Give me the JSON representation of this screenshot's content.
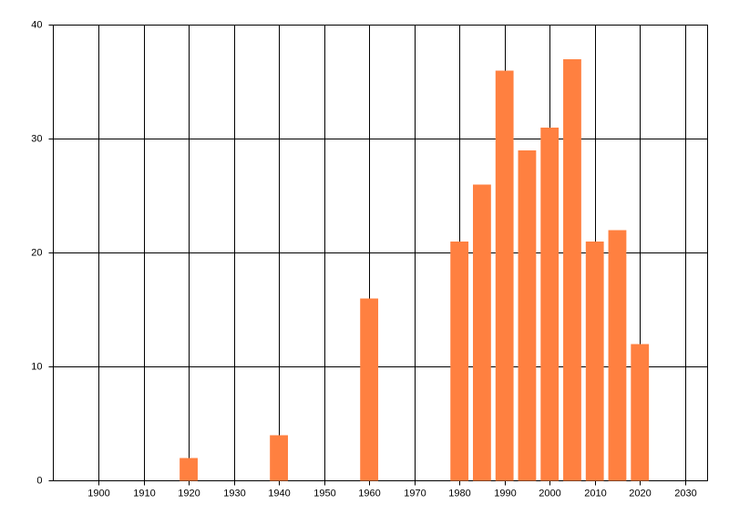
{
  "chart_data": {
    "type": "bar",
    "x": [
      1920,
      1940,
      1960,
      1980,
      1985,
      1990,
      1995,
      2000,
      2005,
      2010,
      2015,
      2020
    ],
    "values": [
      2,
      4,
      16,
      21,
      26,
      36,
      29,
      31,
      37,
      21,
      22,
      12
    ],
    "color": "#ff8040",
    "xlim": [
      1890,
      2035
    ],
    "xticks": [
      1900,
      1910,
      1920,
      1930,
      1940,
      1950,
      1960,
      1970,
      1980,
      1990,
      2000,
      2010,
      2020,
      2030
    ],
    "ylim": [
      0,
      40
    ],
    "yticks": [
      0,
      10,
      20,
      30,
      40
    ],
    "grid": true
  }
}
